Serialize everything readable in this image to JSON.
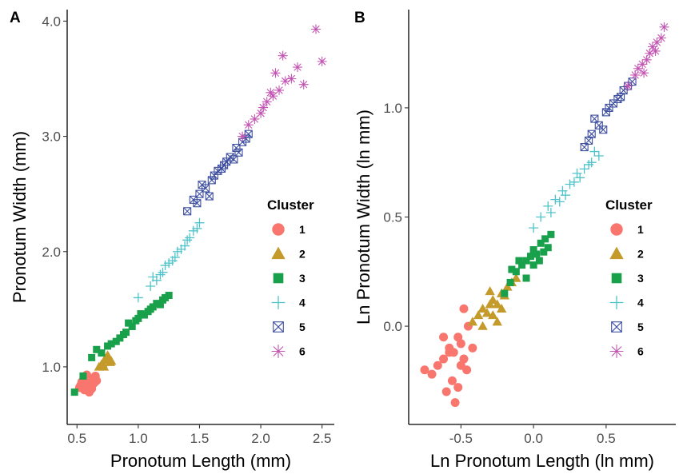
{
  "chart_data": [
    {
      "type": "scatter",
      "panel_label": "A",
      "xlabel": "Pronotum Length (mm)",
      "ylabel": "Pronotum Width (mm)",
      "xlim": [
        0.42,
        2.6
      ],
      "ylim": [
        0.5,
        4.1
      ],
      "xticks": [
        0.5,
        1.0,
        1.5,
        2.0,
        2.5
      ],
      "xtick_labels": [
        "0.5",
        "1.0",
        "1.5",
        "2.0",
        "2.5"
      ],
      "yticks": [
        1.0,
        2.0,
        3.0,
        4.0
      ],
      "ytick_labels": [
        "1.0",
        "2.0",
        "3.0",
        "4.0"
      ],
      "grid": false,
      "legend": {
        "title": "Cluster",
        "position": "right"
      },
      "series": [
        {
          "name": "1",
          "marker": "circle",
          "color": "#F8766D",
          "x": [
            0.52,
            0.55,
            0.58,
            0.6,
            0.62,
            0.65,
            0.56,
            0.59,
            0.63,
            0.54,
            0.61,
            0.66,
            0.57,
            0.6,
            0.64,
            0.53,
            0.58,
            0.62
          ],
          "y": [
            0.82,
            0.86,
            0.88,
            0.9,
            0.85,
            0.92,
            0.8,
            0.84,
            0.89,
            0.87,
            0.83,
            0.88,
            0.91,
            0.78,
            0.86,
            0.84,
            0.93,
            0.81
          ]
        },
        {
          "name": "2",
          "marker": "triangle",
          "color": "#C49A2B",
          "x": [
            0.68,
            0.71,
            0.74,
            0.76,
            0.78,
            0.72,
            0.75,
            0.7,
            0.77,
            0.73
          ],
          "y": [
            1.0,
            1.03,
            1.06,
            1.08,
            1.05,
            1.0,
            1.1,
            1.02,
            1.04,
            1.07
          ]
        },
        {
          "name": "3",
          "marker": "square",
          "color": "#19A04A",
          "x": [
            0.48,
            0.55,
            0.62,
            0.7,
            0.78,
            0.85,
            0.9,
            0.95,
            1.0,
            1.05,
            1.1,
            1.15,
            1.2,
            1.25,
            0.82,
            0.92,
            1.02,
            1.12,
            1.22,
            0.75,
            0.88,
            0.98,
            1.08,
            1.18,
            0.66
          ],
          "y": [
            0.78,
            0.92,
            1.08,
            1.12,
            1.2,
            1.25,
            1.3,
            1.35,
            1.42,
            1.45,
            1.5,
            1.55,
            1.58,
            1.62,
            1.22,
            1.38,
            1.46,
            1.52,
            1.6,
            1.18,
            1.28,
            1.4,
            1.48,
            1.54,
            1.15
          ]
        },
        {
          "name": "4",
          "marker": "plus",
          "color": "#4FC3C9",
          "x": [
            1.0,
            1.1,
            1.15,
            1.2,
            1.25,
            1.3,
            1.35,
            1.4,
            1.45,
            1.5,
            1.12,
            1.22,
            1.32,
            1.42,
            1.28,
            1.38,
            1.18,
            1.48
          ],
          "y": [
            1.6,
            1.7,
            1.75,
            1.82,
            1.9,
            1.95,
            2.02,
            2.1,
            2.18,
            2.25,
            1.78,
            1.88,
            2.0,
            2.12,
            1.92,
            2.05,
            1.8,
            2.2
          ]
        },
        {
          "name": "5",
          "marker": "square-x",
          "color": "#3D4EA0",
          "x": [
            1.4,
            1.45,
            1.5,
            1.55,
            1.6,
            1.65,
            1.7,
            1.75,
            1.8,
            1.85,
            1.9,
            1.52,
            1.62,
            1.72,
            1.82,
            1.58,
            1.68,
            1.78,
            1.48,
            1.88
          ],
          "y": [
            2.35,
            2.45,
            2.5,
            2.55,
            2.62,
            2.7,
            2.75,
            2.82,
            2.9,
            2.95,
            3.02,
            2.58,
            2.66,
            2.78,
            2.86,
            2.48,
            2.72,
            2.8,
            2.42,
            2.98
          ]
        },
        {
          "name": "6",
          "marker": "asterisk",
          "color": "#C355B3",
          "x": [
            1.85,
            1.9,
            1.95,
            2.0,
            2.05,
            2.1,
            2.15,
            2.2,
            2.25,
            2.3,
            2.35,
            2.45,
            2.5,
            2.02,
            2.12,
            2.18,
            2.08
          ],
          "y": [
            3.0,
            3.1,
            3.15,
            3.2,
            3.3,
            3.35,
            3.4,
            3.48,
            3.5,
            3.6,
            3.45,
            3.93,
            3.65,
            3.25,
            3.55,
            3.7,
            3.38
          ]
        }
      ]
    },
    {
      "type": "scatter",
      "panel_label": "B",
      "xlabel": "Ln Pronotum Length (ln mm)",
      "ylabel": "Ln Pronotum Width (ln mm)",
      "xlim": [
        -0.86,
        0.98
      ],
      "ylim": [
        -0.45,
        1.45
      ],
      "xticks": [
        -0.5,
        0.0,
        0.5
      ],
      "xtick_labels": [
        "-0.5",
        "0.0",
        "0.5"
      ],
      "yticks": [
        0.0,
        0.5,
        1.0
      ],
      "ytick_labels": [
        "0.0",
        "0.5",
        "1.0"
      ],
      "grid": false,
      "legend": {
        "title": "Cluster",
        "position": "right"
      },
      "series": [
        {
          "name": "1",
          "marker": "circle",
          "color": "#F8766D",
          "x": [
            -0.75,
            -0.7,
            -0.66,
            -0.62,
            -0.6,
            -0.58,
            -0.55,
            -0.52,
            -0.5,
            -0.48,
            -0.45,
            -0.42,
            -0.56,
            -0.5,
            -0.46,
            -0.62,
            -0.54,
            -0.48,
            -0.58,
            -0.52
          ],
          "y": [
            -0.2,
            -0.22,
            -0.18,
            -0.15,
            -0.3,
            -0.1,
            -0.12,
            -0.05,
            -0.08,
            -0.15,
            0.0,
            -0.1,
            -0.25,
            -0.18,
            -0.2,
            -0.05,
            -0.35,
            0.08,
            -0.12,
            -0.28
          ]
        },
        {
          "name": "2",
          "marker": "triangle",
          "color": "#C49A2B",
          "x": [
            -0.42,
            -0.38,
            -0.35,
            -0.32,
            -0.3,
            -0.28,
            -0.25,
            -0.22,
            -0.2,
            -0.18,
            -0.15,
            -0.12,
            -0.35,
            -0.28,
            -0.22,
            -0.3,
            -0.25
          ],
          "y": [
            0.02,
            0.05,
            0.08,
            0.06,
            0.1,
            0.12,
            0.1,
            0.15,
            0.14,
            0.18,
            0.2,
            0.22,
            0.0,
            0.05,
            0.08,
            0.16,
            0.02
          ]
        },
        {
          "name": "3",
          "marker": "square",
          "color": "#19A04A",
          "x": [
            -0.2,
            -0.16,
            -0.12,
            -0.08,
            -0.05,
            -0.02,
            0.0,
            0.02,
            0.05,
            0.08,
            0.1,
            0.12,
            -0.1,
            -0.05,
            0.0,
            0.04,
            0.07,
            -0.15
          ],
          "y": [
            0.15,
            0.2,
            0.25,
            0.28,
            0.3,
            0.32,
            0.35,
            0.33,
            0.38,
            0.4,
            0.36,
            0.42,
            0.3,
            0.22,
            0.28,
            0.3,
            0.34,
            0.26
          ]
        },
        {
          "name": "4",
          "marker": "plus",
          "color": "#4FC3C9",
          "x": [
            0.0,
            0.05,
            0.1,
            0.15,
            0.2,
            0.25,
            0.3,
            0.35,
            0.4,
            0.45,
            0.12,
            0.22,
            0.32,
            0.42,
            0.18,
            0.28,
            0.38
          ],
          "y": [
            0.45,
            0.5,
            0.55,
            0.58,
            0.62,
            0.65,
            0.7,
            0.72,
            0.75,
            0.78,
            0.52,
            0.6,
            0.68,
            0.8,
            0.57,
            0.66,
            0.74
          ]
        },
        {
          "name": "5",
          "marker": "square-x",
          "color": "#3D4EA0",
          "x": [
            0.35,
            0.4,
            0.45,
            0.5,
            0.55,
            0.6,
            0.65,
            0.42,
            0.52,
            0.62,
            0.48,
            0.58,
            0.38,
            0.68
          ],
          "y": [
            0.82,
            0.88,
            0.92,
            0.98,
            1.02,
            1.05,
            1.1,
            0.95,
            1.0,
            1.08,
            0.9,
            1.04,
            0.85,
            1.12
          ]
        },
        {
          "name": "6",
          "marker": "asterisk",
          "color": "#C355B3",
          "x": [
            0.65,
            0.7,
            0.72,
            0.75,
            0.78,
            0.8,
            0.82,
            0.85,
            0.88,
            0.9,
            0.76,
            0.84
          ],
          "y": [
            1.1,
            1.15,
            1.18,
            1.2,
            1.22,
            1.25,
            1.28,
            1.3,
            1.32,
            1.37,
            1.16,
            1.26
          ]
        }
      ]
    }
  ]
}
